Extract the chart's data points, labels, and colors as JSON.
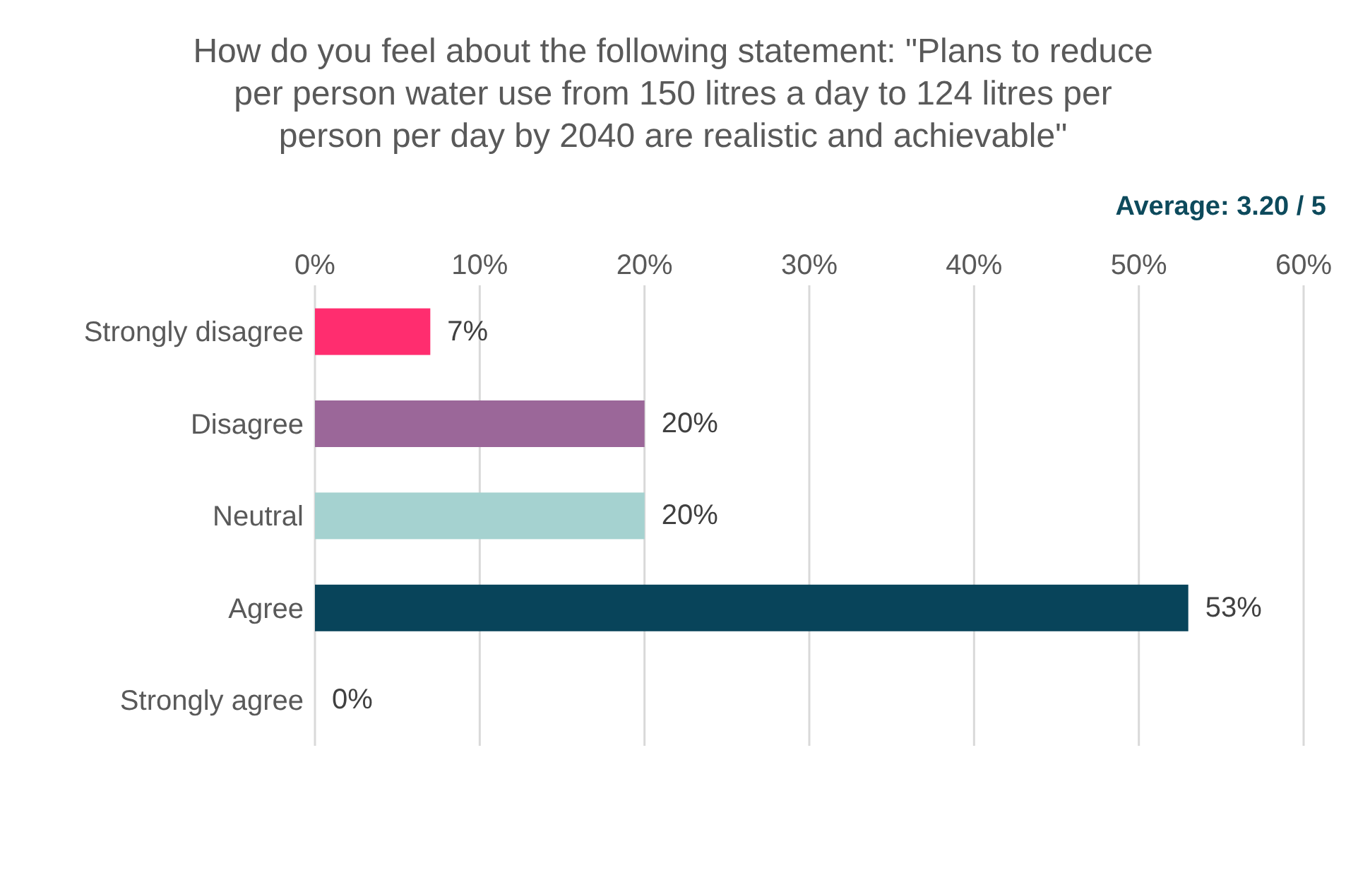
{
  "chart_data": {
    "type": "bar",
    "orientation": "horizontal",
    "title": "How do you feel about the following statement: \"Plans to reduce per person water use from 150 litres a day to 124 litres per person per day by 2040 are realistic and achievable\"",
    "annotations": [
      "Average: 3.20 / 5"
    ],
    "categories": [
      "Strongly disagree",
      "Disagree",
      "Neutral",
      "Agree",
      "Strongly agree"
    ],
    "values": [
      7,
      20,
      20,
      53,
      0
    ],
    "colors": [
      "#ff2d6f",
      "#9b6799",
      "#a5d2d0",
      "#08445a",
      "#08445a"
    ],
    "value_labels": [
      "7%",
      "20%",
      "20%",
      "53%",
      "0%"
    ],
    "xlim": [
      0,
      60
    ],
    "xticks": [
      {
        "value": 0,
        "label": "0%"
      },
      {
        "value": 10,
        "label": "10%"
      },
      {
        "value": 20,
        "label": "20%"
      },
      {
        "value": 30,
        "label": "30%"
      },
      {
        "value": 40,
        "label": "40%"
      },
      {
        "value": 50,
        "label": "50%"
      },
      {
        "value": 60,
        "label": "60%"
      }
    ],
    "grid": "x"
  }
}
